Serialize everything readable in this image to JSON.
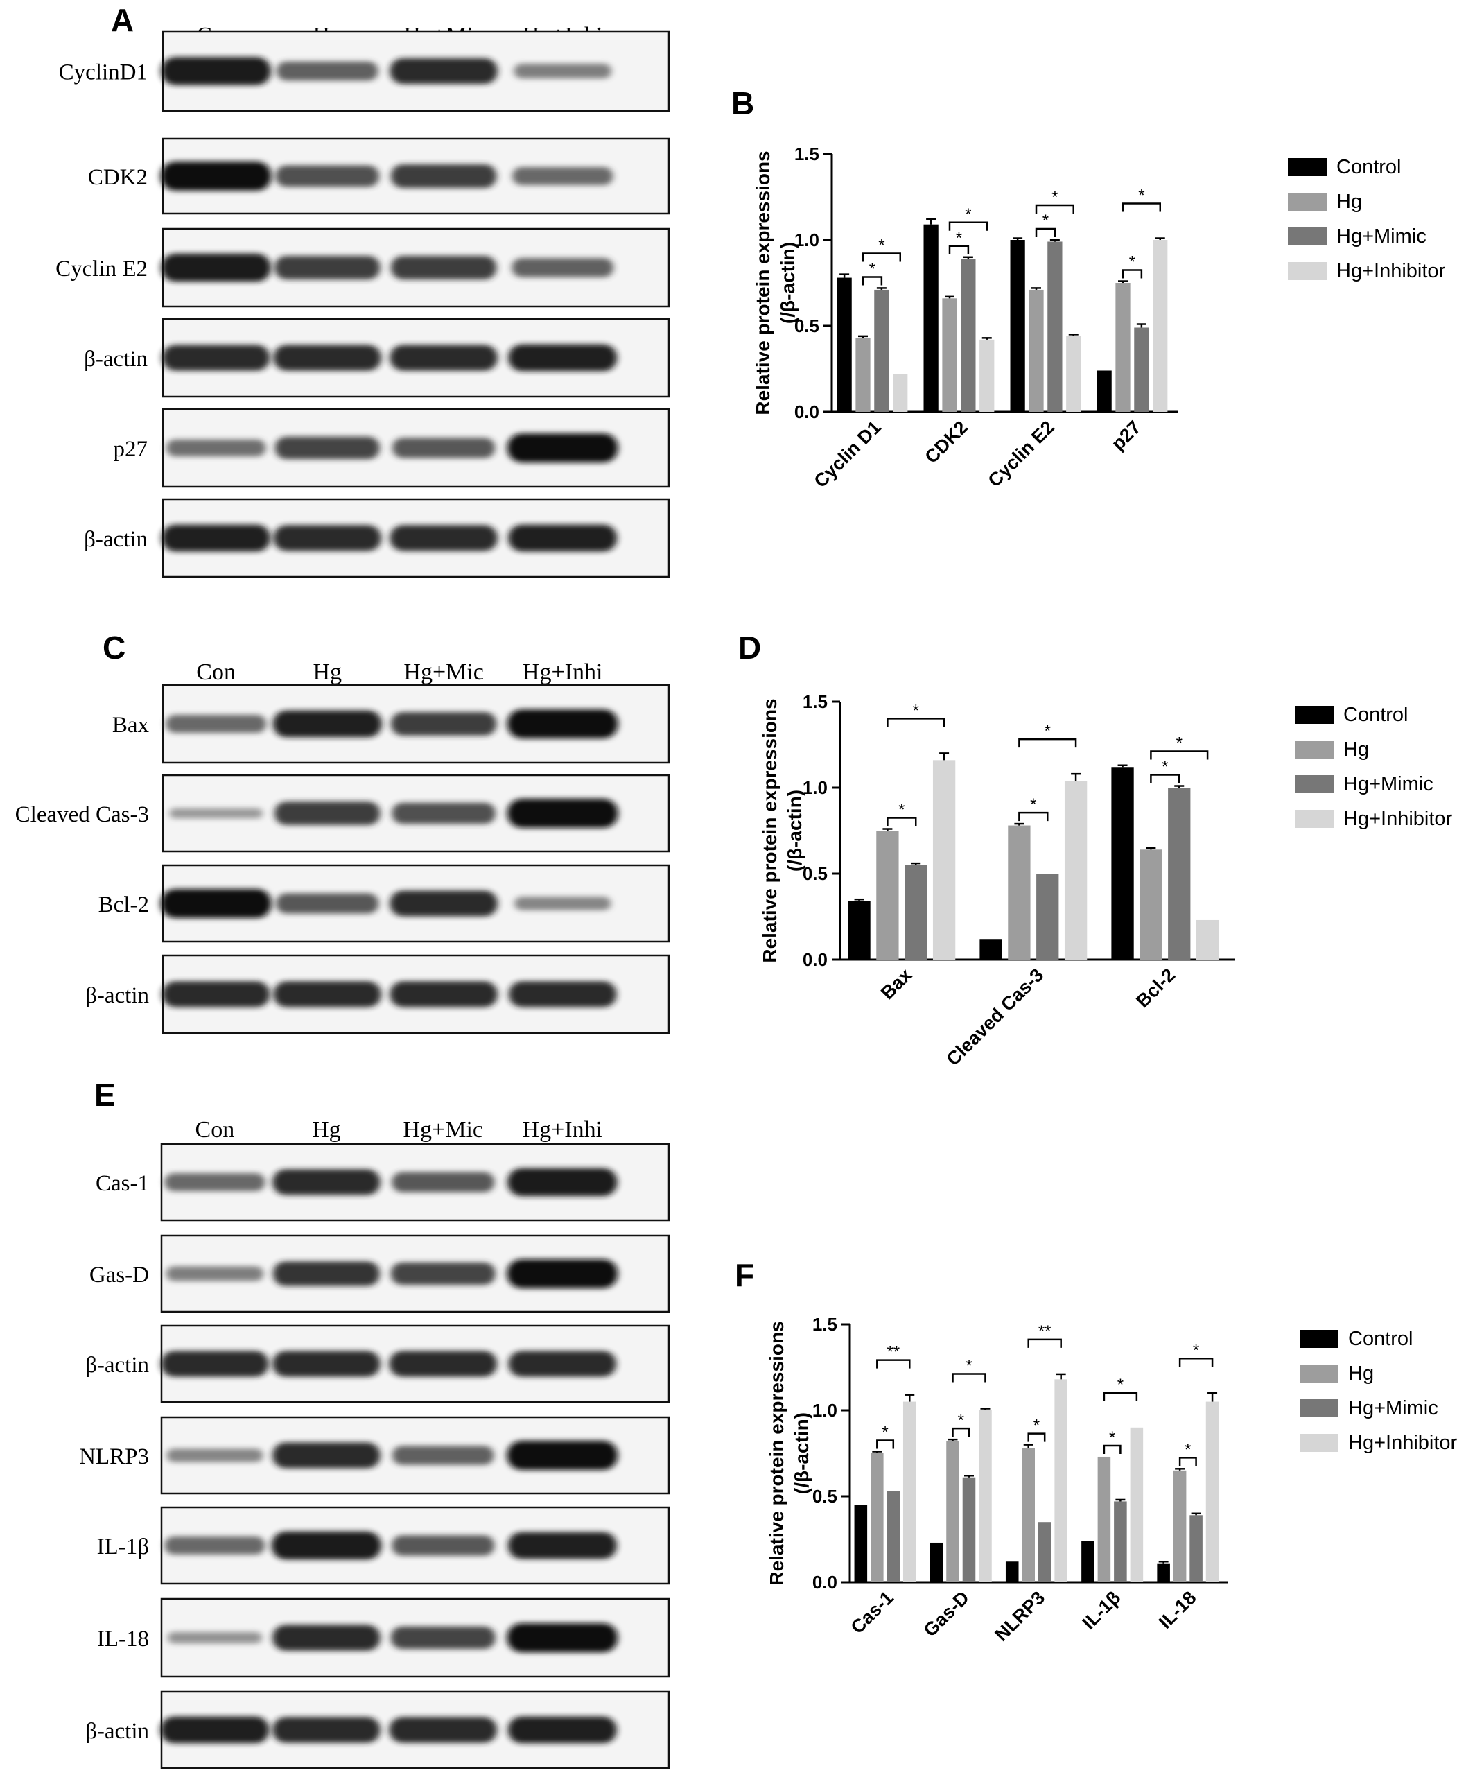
{
  "panels": {
    "A": {
      "letter": "A",
      "lanes": [
        "Con",
        "Hg",
        "Hg+Mic",
        "Hg+Inhi"
      ],
      "blots": [
        {
          "label": "CyclinD1",
          "bands": [
            0.95,
            0.55,
            0.85,
            0.35
          ]
        },
        {
          "label": "CDK2",
          "bands": [
            1.0,
            0.65,
            0.75,
            0.5
          ]
        },
        {
          "label": "Cyclin E2",
          "bands": [
            0.95,
            0.75,
            0.75,
            0.55
          ]
        },
        {
          "label": "β-actin",
          "bands": [
            0.85,
            0.85,
            0.85,
            0.9
          ]
        },
        {
          "label": "p27",
          "bands": [
            0.45,
            0.7,
            0.6,
            1.0
          ]
        },
        {
          "label": "β-actin",
          "bands": [
            0.9,
            0.85,
            0.85,
            0.9
          ]
        }
      ]
    },
    "C": {
      "letter": "C",
      "lanes": [
        "Con",
        "Hg",
        "Hg+Mic",
        "Hg+Inhi"
      ],
      "blots": [
        {
          "label": "Bax",
          "bands": [
            0.5,
            0.9,
            0.75,
            1.0
          ]
        },
        {
          "label": "Cleaved Cas-3",
          "bands": [
            0.15,
            0.75,
            0.65,
            1.0
          ]
        },
        {
          "label": "Bcl-2",
          "bands": [
            1.0,
            0.6,
            0.85,
            0.3
          ]
        },
        {
          "label": "β-actin",
          "bands": [
            0.85,
            0.85,
            0.85,
            0.85
          ]
        }
      ]
    },
    "E": {
      "letter": "E",
      "lanes": [
        "Con",
        "Hg",
        "Hg+Mic",
        "Hg+Inhi"
      ],
      "blots": [
        {
          "label": "Cas-1",
          "bands": [
            0.5,
            0.85,
            0.6,
            0.95
          ]
        },
        {
          "label": "Gas-D",
          "bands": [
            0.35,
            0.8,
            0.7,
            1.0
          ]
        },
        {
          "label": "β-actin",
          "bands": [
            0.85,
            0.85,
            0.85,
            0.85
          ]
        },
        {
          "label": "NLRP3",
          "bands": [
            0.3,
            0.85,
            0.55,
            1.0
          ]
        },
        {
          "label": "IL-1β",
          "bands": [
            0.5,
            0.95,
            0.6,
            0.9
          ]
        },
        {
          "label": "IL-18",
          "bands": [
            0.2,
            0.85,
            0.7,
            1.0
          ]
        },
        {
          "label": "β-actin",
          "bands": [
            0.9,
            0.85,
            0.85,
            0.9
          ]
        }
      ]
    }
  },
  "colors": {
    "control": "#000000",
    "hg": "#9d9d9d",
    "mimic": "#777777",
    "inhibitor": "#d6d6d6"
  },
  "chart_data": [
    {
      "panel": "B",
      "type": "bar",
      "ylabel": "Relative protein expressions\n(/β-actin)",
      "ylim": [
        0,
        1.5
      ],
      "yticks": [
        "0.0",
        "0.5",
        "1.0",
        "1.5"
      ],
      "categories": [
        "Cyclin D1",
        "CDK2",
        "Cyclin E2",
        "p27"
      ],
      "series": [
        {
          "name": "Control",
          "values": [
            0.78,
            1.09,
            1.0,
            0.24
          ],
          "errors": [
            0.02,
            0.03,
            0.01,
            0.0
          ]
        },
        {
          "name": "Hg",
          "values": [
            0.43,
            0.66,
            0.71,
            0.75
          ],
          "errors": [
            0.01,
            0.01,
            0.01,
            0.01
          ]
        },
        {
          "name": "Hg+Mimic",
          "values": [
            0.71,
            0.89,
            0.99,
            0.49
          ],
          "errors": [
            0.01,
            0.01,
            0.01,
            0.02
          ]
        },
        {
          "name": "Hg+Inhibitor",
          "values": [
            0.22,
            0.42,
            0.44,
            1.0
          ],
          "errors": [
            0.0,
            0.01,
            0.01,
            0.01
          ]
        }
      ],
      "significance": [
        {
          "cat": 0,
          "from": 1,
          "to": 2,
          "label": "*"
        },
        {
          "cat": 0,
          "from": 1,
          "to": 3,
          "label": "*"
        },
        {
          "cat": 1,
          "from": 1,
          "to": 2,
          "label": "*"
        },
        {
          "cat": 1,
          "from": 1,
          "to": 3,
          "label": "*"
        },
        {
          "cat": 2,
          "from": 1,
          "to": 2,
          "label": "*"
        },
        {
          "cat": 2,
          "from": 1,
          "to": 3,
          "label": "*"
        },
        {
          "cat": 3,
          "from": 1,
          "to": 2,
          "label": "*"
        },
        {
          "cat": 3,
          "from": 1,
          "to": 3,
          "label": "*"
        }
      ],
      "legend": [
        "Control",
        "Hg",
        "Hg+Mimic",
        "Hg+Inhibitor"
      ],
      "legend_position": "right"
    },
    {
      "panel": "D",
      "type": "bar",
      "ylabel": "Relative protein expressions\n(/β-actin)",
      "ylim": [
        0,
        1.5
      ],
      "yticks": [
        "0.0",
        "0.5",
        "1.0",
        "1.5"
      ],
      "categories": [
        "Bax",
        "Cleaved Cas-3",
        "Bcl-2"
      ],
      "series": [
        {
          "name": "Control",
          "values": [
            0.34,
            0.12,
            1.12
          ],
          "errors": [
            0.01,
            0.0,
            0.01
          ]
        },
        {
          "name": "Hg",
          "values": [
            0.75,
            0.78,
            0.64
          ],
          "errors": [
            0.01,
            0.01,
            0.01
          ]
        },
        {
          "name": "Hg+Mimic",
          "values": [
            0.55,
            0.5,
            1.0
          ],
          "errors": [
            0.01,
            0.0,
            0.01
          ]
        },
        {
          "name": "Hg+Inhibitor",
          "values": [
            1.16,
            1.04,
            0.23
          ],
          "errors": [
            0.04,
            0.04,
            0.0
          ]
        }
      ],
      "significance": [
        {
          "cat": 0,
          "from": 1,
          "to": 2,
          "label": "*"
        },
        {
          "cat": 0,
          "from": 1,
          "to": 3,
          "label": "*"
        },
        {
          "cat": 1,
          "from": 1,
          "to": 2,
          "label": "*"
        },
        {
          "cat": 1,
          "from": 1,
          "to": 3,
          "label": "*"
        },
        {
          "cat": 2,
          "from": 1,
          "to": 2,
          "label": "*"
        },
        {
          "cat": 2,
          "from": 1,
          "to": 3,
          "label": "*"
        }
      ],
      "legend": [
        "Control",
        "Hg",
        "Hg+Mimic",
        "Hg+Inhibitor"
      ],
      "legend_position": "right"
    },
    {
      "panel": "F",
      "type": "bar",
      "ylabel": "Relative protein expressions\n(/β-actin)",
      "ylim": [
        0,
        1.5
      ],
      "yticks": [
        "0.0",
        "0.5",
        "1.0",
        "1.5"
      ],
      "categories": [
        "Cas-1",
        "Gas-D",
        "NLRP3",
        "IL-1β",
        "IL-18"
      ],
      "series": [
        {
          "name": "Control",
          "values": [
            0.45,
            0.23,
            0.12,
            0.24,
            0.11
          ],
          "errors": [
            0.0,
            0.0,
            0.0,
            0.0,
            0.01
          ]
        },
        {
          "name": "Hg",
          "values": [
            0.75,
            0.82,
            0.78,
            0.73,
            0.65
          ],
          "errors": [
            0.01,
            0.01,
            0.02,
            0.0,
            0.01
          ]
        },
        {
          "name": "Hg+Mimic",
          "values": [
            0.53,
            0.61,
            0.35,
            0.47,
            0.39
          ],
          "errors": [
            0.0,
            0.01,
            0.0,
            0.01,
            0.01
          ]
        },
        {
          "name": "Hg+Inhibitor",
          "values": [
            1.05,
            1.0,
            1.18,
            0.9,
            1.05
          ],
          "errors": [
            0.04,
            0.01,
            0.03,
            0.0,
            0.05
          ]
        }
      ],
      "significance": [
        {
          "cat": 0,
          "from": 1,
          "to": 2,
          "label": "*"
        },
        {
          "cat": 0,
          "from": 1,
          "to": 3,
          "label": "**"
        },
        {
          "cat": 1,
          "from": 1,
          "to": 2,
          "label": "*"
        },
        {
          "cat": 1,
          "from": 1,
          "to": 3,
          "label": "*"
        },
        {
          "cat": 2,
          "from": 1,
          "to": 2,
          "label": "*"
        },
        {
          "cat": 2,
          "from": 1,
          "to": 3,
          "label": "**"
        },
        {
          "cat": 3,
          "from": 1,
          "to": 2,
          "label": "*"
        },
        {
          "cat": 3,
          "from": 1,
          "to": 3,
          "label": "*"
        },
        {
          "cat": 4,
          "from": 1,
          "to": 2,
          "label": "*"
        },
        {
          "cat": 4,
          "from": 1,
          "to": 3,
          "label": "*"
        }
      ],
      "legend": [
        "Control",
        "Hg",
        "Hg+Mimic",
        "Hg+Inhibitor"
      ],
      "legend_position": "right"
    }
  ]
}
